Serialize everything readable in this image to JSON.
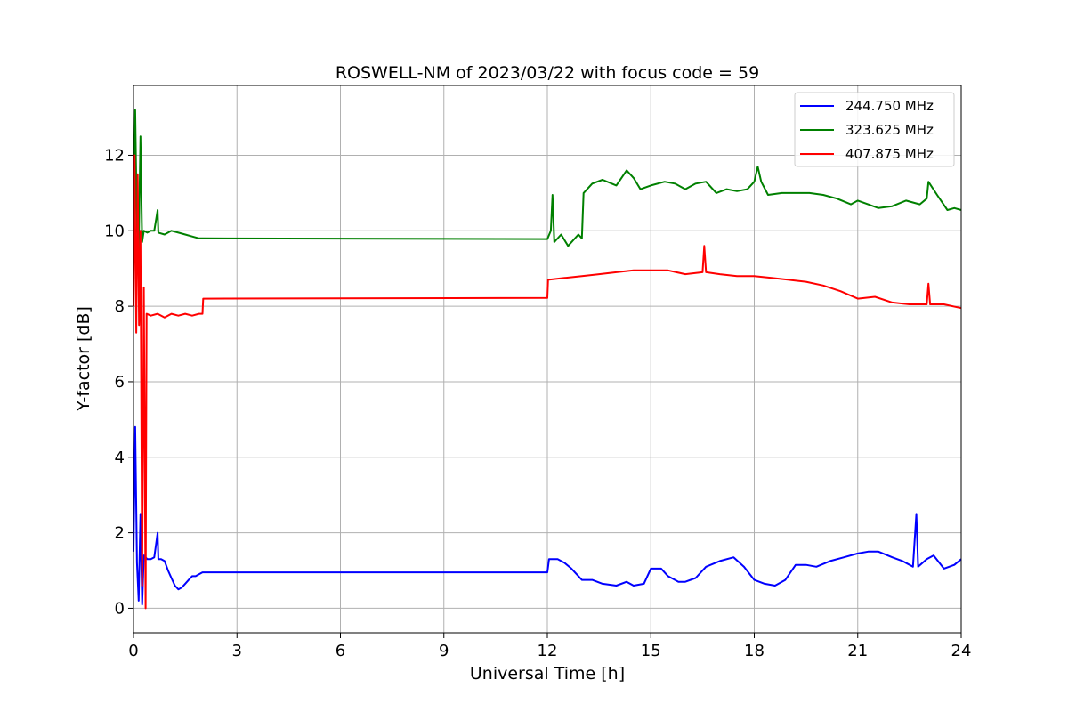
{
  "chart_data": {
    "type": "line",
    "title": "ROSWELL-NM of 2023/03/22 with focus code = 59",
    "xlabel": "Universal Time [h]",
    "ylabel": "Y-factor [dB]",
    "xlim": [
      0,
      24
    ],
    "ylim": [
      -0.65,
      13.85
    ],
    "xticks": [
      0,
      3,
      6,
      9,
      12,
      15,
      18,
      21,
      24
    ],
    "yticks": [
      0,
      2,
      4,
      6,
      8,
      10,
      12
    ],
    "grid": true,
    "legend_position": "top-right",
    "series": [
      {
        "name": "244.750 MHz",
        "color": "#0000ff",
        "points": [
          [
            0.0,
            1.5
          ],
          [
            0.05,
            4.8
          ],
          [
            0.1,
            1.2
          ],
          [
            0.15,
            0.2
          ],
          [
            0.2,
            2.5
          ],
          [
            0.25,
            0.1
          ],
          [
            0.3,
            1.4
          ],
          [
            0.4,
            1.3
          ],
          [
            0.5,
            1.3
          ],
          [
            0.6,
            1.35
          ],
          [
            0.7,
            2.0
          ],
          [
            0.72,
            1.3
          ],
          [
            0.8,
            1.3
          ],
          [
            0.9,
            1.25
          ],
          [
            1.0,
            1.0
          ],
          [
            1.1,
            0.8
          ],
          [
            1.2,
            0.6
          ],
          [
            1.3,
            0.5
          ],
          [
            1.4,
            0.55
          ],
          [
            1.5,
            0.65
          ],
          [
            1.6,
            0.75
          ],
          [
            1.7,
            0.85
          ],
          [
            1.8,
            0.85
          ],
          [
            1.9,
            0.9
          ],
          [
            2.0,
            0.95
          ],
          [
            12.0,
            0.95
          ],
          [
            12.05,
            1.3
          ],
          [
            12.3,
            1.3
          ],
          [
            12.5,
            1.2
          ],
          [
            12.7,
            1.05
          ],
          [
            13.0,
            0.75
          ],
          [
            13.3,
            0.75
          ],
          [
            13.6,
            0.65
          ],
          [
            14.0,
            0.6
          ],
          [
            14.3,
            0.7
          ],
          [
            14.5,
            0.6
          ],
          [
            14.8,
            0.65
          ],
          [
            15.0,
            1.05
          ],
          [
            15.3,
            1.05
          ],
          [
            15.5,
            0.85
          ],
          [
            15.8,
            0.7
          ],
          [
            16.0,
            0.7
          ],
          [
            16.3,
            0.8
          ],
          [
            16.6,
            1.1
          ],
          [
            17.0,
            1.25
          ],
          [
            17.4,
            1.35
          ],
          [
            17.7,
            1.1
          ],
          [
            18.0,
            0.75
          ],
          [
            18.3,
            0.65
          ],
          [
            18.6,
            0.6
          ],
          [
            18.9,
            0.75
          ],
          [
            19.2,
            1.15
          ],
          [
            19.5,
            1.15
          ],
          [
            19.8,
            1.1
          ],
          [
            20.2,
            1.25
          ],
          [
            20.6,
            1.35
          ],
          [
            21.0,
            1.45
          ],
          [
            21.3,
            1.5
          ],
          [
            21.6,
            1.5
          ],
          [
            22.0,
            1.35
          ],
          [
            22.3,
            1.25
          ],
          [
            22.6,
            1.1
          ],
          [
            22.7,
            2.5
          ],
          [
            22.75,
            1.1
          ],
          [
            23.0,
            1.3
          ],
          [
            23.2,
            1.4
          ],
          [
            23.5,
            1.05
          ],
          [
            23.8,
            1.15
          ],
          [
            24.0,
            1.3
          ]
        ]
      },
      {
        "name": "323.625 MHz",
        "color": "#008000",
        "points": [
          [
            0.0,
            10.0
          ],
          [
            0.05,
            13.2
          ],
          [
            0.1,
            10.0
          ],
          [
            0.15,
            9.5
          ],
          [
            0.2,
            12.5
          ],
          [
            0.25,
            9.7
          ],
          [
            0.3,
            10.0
          ],
          [
            0.4,
            9.95
          ],
          [
            0.5,
            10.0
          ],
          [
            0.6,
            10.0
          ],
          [
            0.7,
            10.55
          ],
          [
            0.72,
            9.95
          ],
          [
            0.9,
            9.9
          ],
          [
            1.1,
            10.0
          ],
          [
            1.3,
            9.95
          ],
          [
            1.5,
            9.9
          ],
          [
            1.7,
            9.85
          ],
          [
            1.9,
            9.8
          ],
          [
            2.0,
            9.8
          ],
          [
            12.0,
            9.78
          ],
          [
            12.1,
            10.0
          ],
          [
            12.15,
            10.95
          ],
          [
            12.2,
            9.7
          ],
          [
            12.4,
            9.9
          ],
          [
            12.6,
            9.6
          ],
          [
            12.9,
            9.9
          ],
          [
            13.0,
            9.8
          ],
          [
            13.05,
            11.0
          ],
          [
            13.3,
            11.25
          ],
          [
            13.6,
            11.35
          ],
          [
            14.0,
            11.2
          ],
          [
            14.3,
            11.6
          ],
          [
            14.5,
            11.4
          ],
          [
            14.7,
            11.1
          ],
          [
            15.0,
            11.2
          ],
          [
            15.4,
            11.3
          ],
          [
            15.7,
            11.25
          ],
          [
            16.0,
            11.1
          ],
          [
            16.3,
            11.25
          ],
          [
            16.6,
            11.3
          ],
          [
            16.9,
            11.0
          ],
          [
            17.2,
            11.1
          ],
          [
            17.5,
            11.05
          ],
          [
            17.8,
            11.1
          ],
          [
            18.0,
            11.3
          ],
          [
            18.1,
            11.7
          ],
          [
            18.2,
            11.3
          ],
          [
            18.4,
            10.95
          ],
          [
            18.8,
            11.0
          ],
          [
            19.2,
            11.0
          ],
          [
            19.6,
            11.0
          ],
          [
            20.0,
            10.95
          ],
          [
            20.4,
            10.85
          ],
          [
            20.8,
            10.7
          ],
          [
            21.0,
            10.8
          ],
          [
            21.3,
            10.7
          ],
          [
            21.6,
            10.6
          ],
          [
            22.0,
            10.65
          ],
          [
            22.4,
            10.8
          ],
          [
            22.8,
            10.7
          ],
          [
            23.0,
            10.85
          ],
          [
            23.05,
            11.3
          ],
          [
            23.3,
            10.95
          ],
          [
            23.6,
            10.55
          ],
          [
            23.8,
            10.6
          ],
          [
            24.0,
            10.55
          ]
        ]
      },
      {
        "name": "407.875 MHz",
        "color": "#ff0000",
        "points": [
          [
            0.0,
            8.0
          ],
          [
            0.03,
            12.0
          ],
          [
            0.08,
            7.3
          ],
          [
            0.12,
            11.5
          ],
          [
            0.16,
            7.5
          ],
          [
            0.2,
            10.0
          ],
          [
            0.25,
            0.6
          ],
          [
            0.3,
            8.5
          ],
          [
            0.35,
            0.0
          ],
          [
            0.38,
            7.8
          ],
          [
            0.5,
            7.75
          ],
          [
            0.7,
            7.8
          ],
          [
            0.9,
            7.7
          ],
          [
            1.1,
            7.8
          ],
          [
            1.3,
            7.75
          ],
          [
            1.5,
            7.8
          ],
          [
            1.7,
            7.75
          ],
          [
            1.9,
            7.8
          ],
          [
            2.0,
            7.8
          ],
          [
            2.02,
            8.2
          ],
          [
            12.0,
            8.22
          ],
          [
            12.02,
            8.7
          ],
          [
            12.5,
            8.75
          ],
          [
            13.0,
            8.8
          ],
          [
            13.5,
            8.85
          ],
          [
            14.0,
            8.9
          ],
          [
            14.5,
            8.95
          ],
          [
            15.0,
            8.95
          ],
          [
            15.5,
            8.95
          ],
          [
            16.0,
            8.85
          ],
          [
            16.5,
            8.9
          ],
          [
            16.55,
            9.6
          ],
          [
            16.6,
            8.9
          ],
          [
            17.0,
            8.85
          ],
          [
            17.5,
            8.8
          ],
          [
            18.0,
            8.8
          ],
          [
            18.5,
            8.75
          ],
          [
            19.0,
            8.7
          ],
          [
            19.5,
            8.65
          ],
          [
            20.0,
            8.55
          ],
          [
            20.5,
            8.4
          ],
          [
            21.0,
            8.2
          ],
          [
            21.5,
            8.25
          ],
          [
            22.0,
            8.1
          ],
          [
            22.5,
            8.05
          ],
          [
            23.0,
            8.05
          ],
          [
            23.05,
            8.6
          ],
          [
            23.1,
            8.05
          ],
          [
            23.5,
            8.05
          ],
          [
            24.0,
            7.95
          ]
        ]
      }
    ]
  }
}
